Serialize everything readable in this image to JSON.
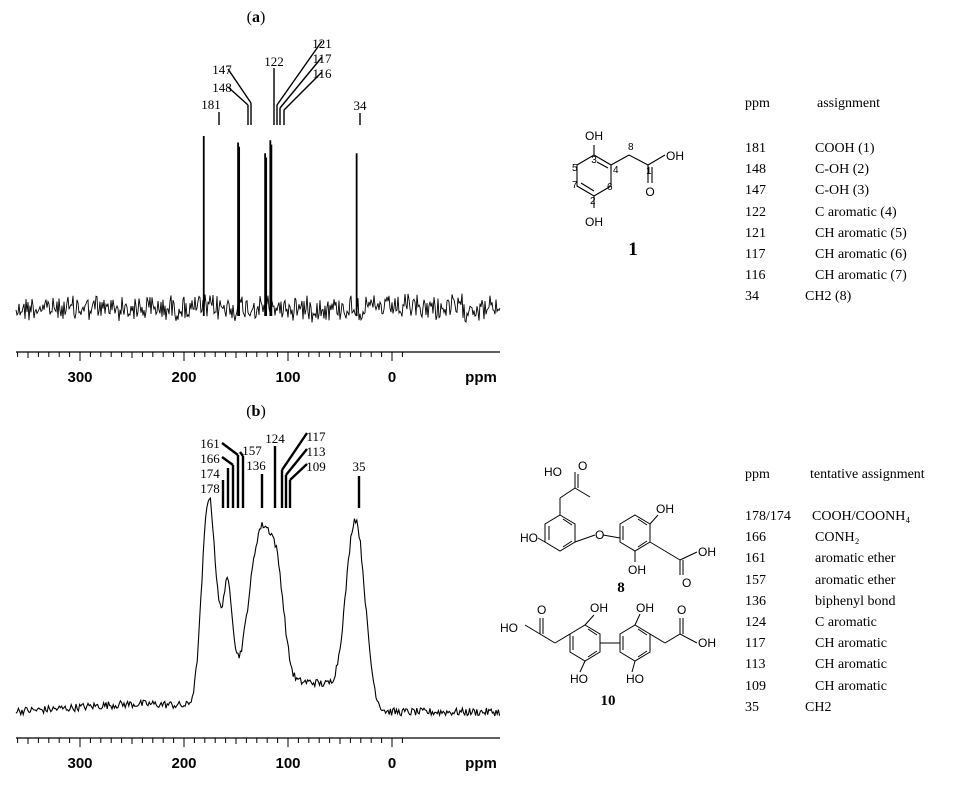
{
  "panels": [
    {
      "label": "(a)",
      "label_letter": "a",
      "x_ticks": [
        {
          "v": 300,
          "t": "300"
        },
        {
          "v": 200,
          "t": "200"
        },
        {
          "v": 100,
          "t": "100"
        },
        {
          "v": 0,
          "t": "0"
        }
      ],
      "x_unit": "ppm"
    },
    {
      "label": "(b)",
      "label_letter": "b",
      "x_ticks": [
        {
          "v": 300,
          "t": "300"
        },
        {
          "v": 200,
          "t": "200"
        },
        {
          "v": 100,
          "t": "100"
        },
        {
          "v": 0,
          "t": "0"
        }
      ],
      "x_unit": "ppm"
    }
  ],
  "chart_data": [
    {
      "type": "line",
      "xlabel": "ppm",
      "xlim": [
        390,
        -10
      ],
      "peaks": [
        {
          "ppm": 181,
          "label": "181",
          "height": 0.8
        },
        {
          "ppm": 148,
          "label": "148",
          "height": 0.77
        },
        {
          "ppm": 147,
          "label": "147",
          "height": 0.75
        },
        {
          "ppm": 122,
          "label": "122",
          "height": 0.72
        },
        {
          "ppm": 121,
          "label": "121",
          "height": 0.7
        },
        {
          "ppm": 117,
          "label": "117",
          "height": 0.78
        },
        {
          "ppm": 116,
          "label": "116",
          "height": 0.76
        },
        {
          "ppm": 34,
          "label": "34",
          "height": 0.72
        }
      ]
    },
    {
      "type": "line",
      "xlabel": "ppm",
      "xlim": [
        390,
        -10
      ],
      "peaks": [
        {
          "ppm": 178,
          "label": "178"
        },
        {
          "ppm": 174,
          "label": "174"
        },
        {
          "ppm": 166,
          "label": "166"
        },
        {
          "ppm": 161,
          "label": "161"
        },
        {
          "ppm": 157,
          "label": "157"
        },
        {
          "ppm": 136,
          "label": "136"
        },
        {
          "ppm": 124,
          "label": "124"
        },
        {
          "ppm": 117,
          "label": "117"
        },
        {
          "ppm": 113,
          "label": "113"
        },
        {
          "ppm": 109,
          "label": "109"
        },
        {
          "ppm": 35,
          "label": "35"
        }
      ]
    }
  ],
  "table_a": {
    "header": {
      "ppm": "ppm",
      "assignment": "assignment"
    },
    "rows": [
      {
        "ppm": "181",
        "assignment": "COOH (1)"
      },
      {
        "ppm": "148",
        "assignment": "C-OH (2)"
      },
      {
        "ppm": "147",
        "assignment": "C-OH (3)"
      },
      {
        "ppm": "122",
        "assignment": "C aromatic (4)"
      },
      {
        "ppm": "121",
        "assignment": "CH aromatic (5)"
      },
      {
        "ppm": "117",
        "assignment": "CH aromatic (6)"
      },
      {
        "ppm": "116",
        "assignment": "CH aromatic (7)"
      },
      {
        "ppm": "34",
        "assignment": "CH2 (8)"
      }
    ]
  },
  "table_b": {
    "header": {
      "ppm": "ppm",
      "assignment": "tentative assignment"
    },
    "rows": [
      {
        "ppm": "178/174",
        "assignment": "COOH/COONH₄"
      },
      {
        "ppm": "166",
        "assignment": "CONH₂"
      },
      {
        "ppm": "161",
        "assignment": "aromatic ether"
      },
      {
        "ppm": "157",
        "assignment": "aromatic ether"
      },
      {
        "ppm": "136",
        "assignment": "biphenyl bond"
      },
      {
        "ppm": "124",
        "assignment": "C aromatic"
      },
      {
        "ppm": "117",
        "assignment": "CH aromatic"
      },
      {
        "ppm": "113",
        "assignment": "CH aromatic"
      },
      {
        "ppm": "109",
        "assignment": "CH aromatic"
      },
      {
        "ppm": "35",
        "assignment": "CH2"
      }
    ]
  },
  "structures": {
    "compound1": {
      "number": "1",
      "oh_top": "OH",
      "oh_bottom": "OH",
      "acid_oh": "OH",
      "carbonyl_o": "O",
      "carbons": [
        "1",
        "2",
        "3",
        "4",
        "5",
        "6",
        "7",
        "8"
      ]
    },
    "compound8": {
      "number": "8",
      "atoms": {
        "ho_acid": "HO",
        "o_top": "O",
        "ho_left": "HO",
        "o_ether": "O",
        "oh_right_top": "OH",
        "oh_ring_bottom": "OH",
        "o_right": "O",
        "oh_acid_right": "OH"
      }
    },
    "compound10": {
      "number": "10",
      "atoms": {
        "ho_acid": "HO",
        "o_top": "O",
        "oh_ring1_top": "OH",
        "oh_ring2_top": "OH",
        "ho_ring1_bottom": "HO",
        "oh_ring2_bottom": "HO",
        "o_bottom": "O",
        "oh_acid_right": "OH"
      }
    }
  }
}
